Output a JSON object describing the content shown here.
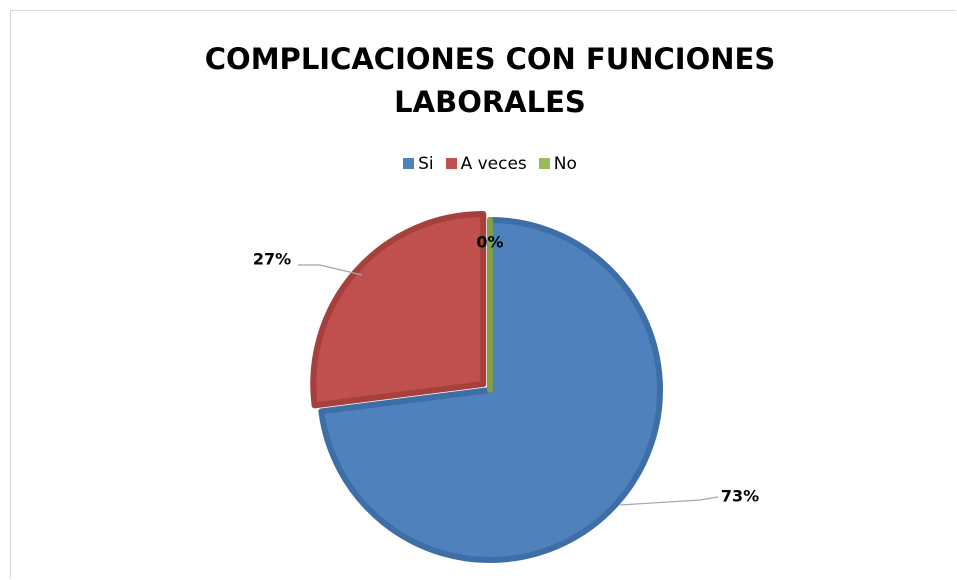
{
  "chart_data": {
    "type": "pie",
    "title": "COMPLICACIONES CON FUNCIONES LABORALES",
    "categories": [
      "Si",
      "A veces",
      "No"
    ],
    "values": [
      73,
      27,
      0
    ],
    "value_labels": [
      "73%",
      "27%",
      "0%"
    ],
    "colors": [
      "#4f81bd",
      "#c0504d",
      "#9bbb59"
    ],
    "legend": "top"
  }
}
